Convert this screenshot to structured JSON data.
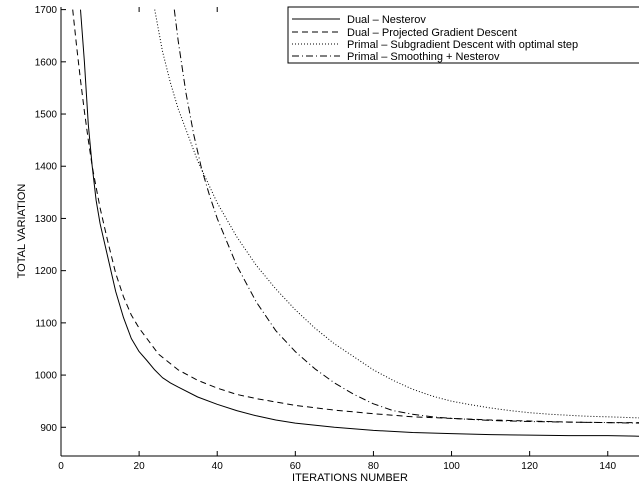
{
  "chart_data": {
    "type": "line",
    "title": "",
    "xlabel": "ITERATIONS NUMBER",
    "ylabel": "TOTAL VARIATION",
    "xlim": [
      0,
      148
    ],
    "ylim": [
      845,
      1705
    ],
    "xticks": [
      0,
      20,
      40,
      60,
      80,
      100,
      120,
      140
    ],
    "yticks": [
      900,
      1000,
      1100,
      1200,
      1300,
      1400,
      1500,
      1600,
      1700
    ],
    "grid": false,
    "legend_position": "top-right",
    "series": [
      {
        "name": "Dual – Nesterov",
        "style": "solid",
        "x": [
          5,
          6,
          7,
          8,
          9,
          10,
          12,
          14,
          16,
          18,
          20,
          22,
          24,
          26,
          28,
          30,
          35,
          40,
          45,
          50,
          55,
          60,
          70,
          80,
          90,
          100,
          110,
          120,
          130,
          140,
          148
        ],
        "y": [
          1700,
          1600,
          1480,
          1400,
          1335,
          1290,
          1225,
          1160,
          1110,
          1070,
          1045,
          1028,
          1010,
          995,
          985,
          977,
          958,
          944,
          932,
          922,
          914,
          908,
          900,
          894,
          890,
          888,
          886,
          885,
          884,
          884,
          883
        ]
      },
      {
        "name": "Dual – Projected Gradient Descent",
        "style": "dashed",
        "x": [
          3,
          4,
          5,
          6,
          7,
          8,
          9,
          10,
          12,
          14,
          16,
          18,
          20,
          25,
          30,
          35,
          40,
          45,
          50,
          60,
          70,
          80,
          90,
          100,
          110,
          120,
          130,
          140,
          148
        ],
        "y": [
          1700,
          1630,
          1565,
          1505,
          1450,
          1400,
          1360,
          1320,
          1255,
          1195,
          1150,
          1115,
          1090,
          1040,
          1010,
          990,
          975,
          963,
          955,
          942,
          933,
          926,
          920,
          917,
          914,
          912,
          910,
          909,
          909
        ]
      },
      {
        "name": "Primal – Subgradient Descent with optimal step",
        "style": "dotted",
        "x": [
          24,
          26,
          28,
          30,
          35,
          40,
          45,
          50,
          55,
          60,
          65,
          70,
          75,
          80,
          85,
          90,
          95,
          100,
          105,
          110,
          115,
          120,
          125,
          130,
          135,
          140,
          148
        ],
        "y": [
          1700,
          1620,
          1560,
          1510,
          1410,
          1330,
          1265,
          1210,
          1165,
          1125,
          1090,
          1060,
          1035,
          1010,
          990,
          973,
          960,
          950,
          943,
          937,
          932,
          928,
          925,
          923,
          921,
          920,
          918
        ]
      },
      {
        "name": "Primal – Smoothing + Nesterov",
        "style": "dashdot",
        "x": [
          29,
          30,
          32,
          34,
          36,
          38,
          40,
          45,
          50,
          55,
          60,
          65,
          70,
          75,
          80,
          85,
          90,
          95,
          100,
          110,
          120,
          130,
          140,
          148
        ],
        "y": [
          1700,
          1640,
          1540,
          1460,
          1395,
          1345,
          1300,
          1210,
          1140,
          1085,
          1045,
          1012,
          985,
          963,
          945,
          932,
          925,
          920,
          917,
          913,
          911,
          910,
          909,
          908
        ]
      }
    ]
  }
}
